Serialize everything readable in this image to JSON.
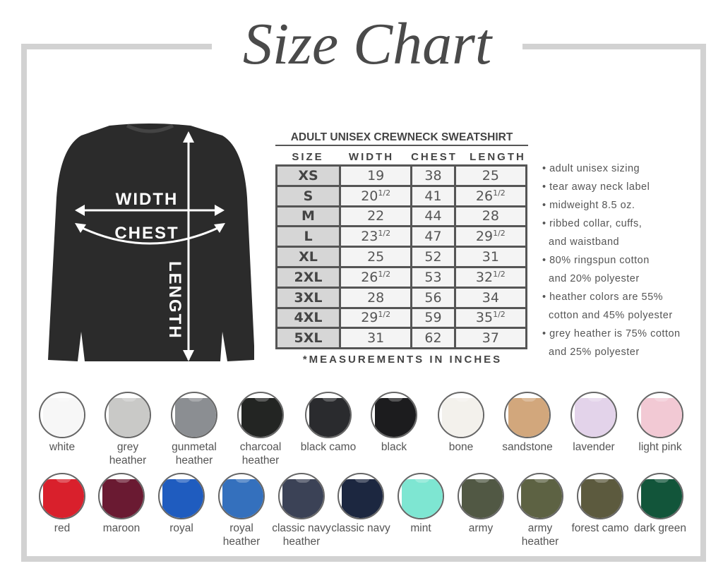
{
  "title": "Size Chart",
  "table": {
    "title": "ADULT UNISEX CREWNECK SWEATSHIRT",
    "columns": [
      "SIZE",
      "WIDTH",
      "CHEST",
      "LENGTH"
    ],
    "rows": [
      {
        "size": "XS",
        "width": {
          "w": "19",
          "f": ""
        },
        "chest": {
          "w": "38",
          "f": ""
        },
        "length": {
          "w": "25",
          "f": ""
        }
      },
      {
        "size": "S",
        "width": {
          "w": "20",
          "f": "1/2"
        },
        "chest": {
          "w": "41",
          "f": ""
        },
        "length": {
          "w": "26",
          "f": "1/2"
        }
      },
      {
        "size": "M",
        "width": {
          "w": "22",
          "f": ""
        },
        "chest": {
          "w": "44",
          "f": ""
        },
        "length": {
          "w": "28",
          "f": ""
        }
      },
      {
        "size": "L",
        "width": {
          "w": "23",
          "f": "1/2"
        },
        "chest": {
          "w": "47",
          "f": ""
        },
        "length": {
          "w": "29",
          "f": "1/2"
        }
      },
      {
        "size": "XL",
        "width": {
          "w": "25",
          "f": ""
        },
        "chest": {
          "w": "52",
          "f": ""
        },
        "length": {
          "w": "31",
          "f": ""
        }
      },
      {
        "size": "2XL",
        "width": {
          "w": "26",
          "f": "1/2"
        },
        "chest": {
          "w": "53",
          "f": ""
        },
        "length": {
          "w": "32",
          "f": "1/2"
        }
      },
      {
        "size": "3XL",
        "width": {
          "w": "28",
          "f": ""
        },
        "chest": {
          "w": "56",
          "f": ""
        },
        "length": {
          "w": "34",
          "f": ""
        }
      },
      {
        "size": "4XL",
        "width": {
          "w": "29",
          "f": "1/2"
        },
        "chest": {
          "w": "59",
          "f": ""
        },
        "length": {
          "w": "35",
          "f": "1/2"
        }
      },
      {
        "size": "5XL",
        "width": {
          "w": "31",
          "f": ""
        },
        "chest": {
          "w": "62",
          "f": ""
        },
        "length": {
          "w": "37",
          "f": ""
        }
      }
    ],
    "footnote": "*MEASUREMENTS IN INCHES"
  },
  "diagram": {
    "width_label": "WIDTH",
    "chest_label": "CHEST",
    "length_label": "LENGTH",
    "shirt_color": "#2b2b2b"
  },
  "notes": [
    "• adult unisex sizing",
    "• tear away neck label",
    "• midweight 8.5 oz.",
    "• ribbed collar, cuffs,",
    "  and waistband",
    "• 80% ringspun cotton",
    "  and 20% polyester",
    "• heather colors are 55%",
    "  cotton and 45% polyester",
    "• grey heather is 75% cotton",
    "  and 25% polyester"
  ],
  "colors_row1": [
    {
      "name": "white",
      "hex": "#f7f7f7"
    },
    {
      "name": "grey heather",
      "hex": "#c9c9c7"
    },
    {
      "name": "gunmetal heather",
      "hex": "#8b8e92"
    },
    {
      "name": "charcoal heather",
      "hex": "#232523"
    },
    {
      "name": "black camo",
      "hex": "#2a2b2e"
    },
    {
      "name": "black",
      "hex": "#1c1c1e"
    },
    {
      "name": "bone",
      "hex": "#f3f1ec"
    },
    {
      "name": "sandstone",
      "hex": "#d2a77c"
    },
    {
      "name": "lavender",
      "hex": "#e3d3ea"
    },
    {
      "name": "light pink",
      "hex": "#f2c9d4"
    }
  ],
  "colors_row2": [
    {
      "name": "red",
      "hex": "#d9202c"
    },
    {
      "name": "maroon",
      "hex": "#6a1a32"
    },
    {
      "name": "royal",
      "hex": "#1f5cbf"
    },
    {
      "name": "royal heather",
      "hex": "#3470bd"
    },
    {
      "name": "classic navy heather",
      "hex": "#3b4256"
    },
    {
      "name": "classic navy",
      "hex": "#1c2740"
    },
    {
      "name": "mint",
      "hex": "#7ee6d2"
    },
    {
      "name": "army",
      "hex": "#515844"
    },
    {
      "name": "army heather",
      "hex": "#5d6243"
    },
    {
      "name": "forest camo",
      "hex": "#5c5a3e"
    },
    {
      "name": "dark green",
      "hex": "#12553a"
    }
  ]
}
